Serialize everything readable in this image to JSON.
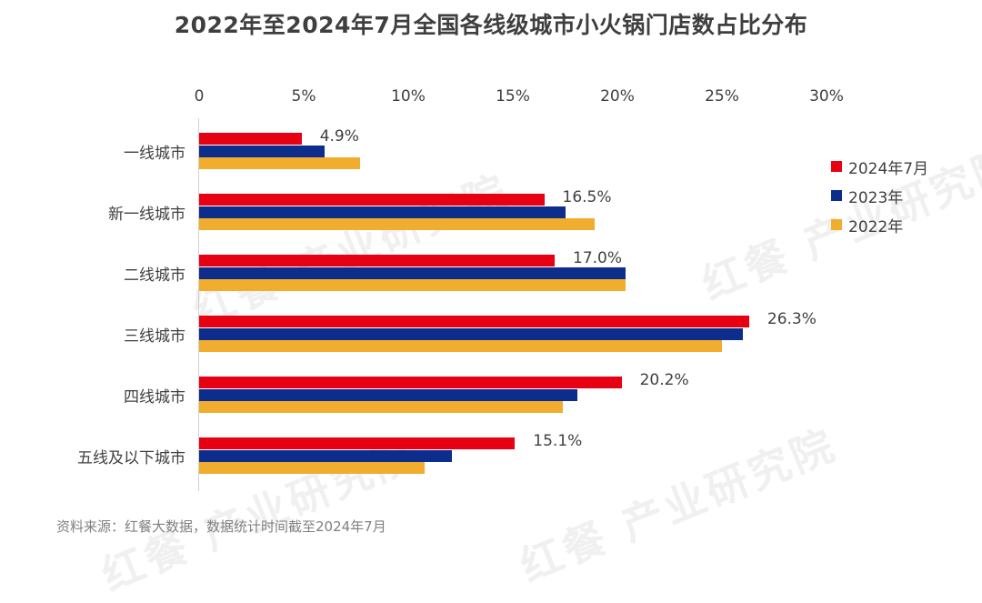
{
  "title": "2022年至2024年7月全国各线级城市小火锅门店数占比分布",
  "source": "资料来源：红餐大数据，数据统计时间截至2024年7月",
  "watermark": "红餐 产业研究院",
  "colors": {
    "s2024": "#e60012",
    "s2023": "#0d2d8c",
    "s2022": "#f0ad2e"
  },
  "chart_data": {
    "type": "bar",
    "orientation": "horizontal",
    "title": "2022年至2024年7月全国各线级城市小火锅门店数占比分布",
    "xlabel": "",
    "ylabel": "",
    "xlim": [
      0,
      30
    ],
    "x_ticks": [
      "0",
      "5%",
      "10%",
      "15%",
      "20%",
      "25%",
      "30%"
    ],
    "grid": false,
    "legend_position": "right",
    "categories": [
      "一线城市",
      "新一线城市",
      "二线城市",
      "三线城市",
      "四线城市",
      "五线及以下城市"
    ],
    "series": [
      {
        "name": "2024年7月",
        "color": "#e60012",
        "values": [
          4.9,
          16.5,
          17.0,
          26.3,
          20.2,
          15.1
        ],
        "labels": [
          "4.9%",
          "16.5%",
          "17.0%",
          "26.3%",
          "20.2%",
          "15.1%"
        ]
      },
      {
        "name": "2023年",
        "color": "#0d2d8c",
        "values": [
          6.0,
          17.5,
          20.4,
          26.0,
          18.1,
          12.1
        ]
      },
      {
        "name": "2022年",
        "color": "#f0ad2e",
        "values": [
          7.7,
          18.9,
          20.4,
          25.0,
          17.4,
          10.8
        ]
      }
    ]
  }
}
